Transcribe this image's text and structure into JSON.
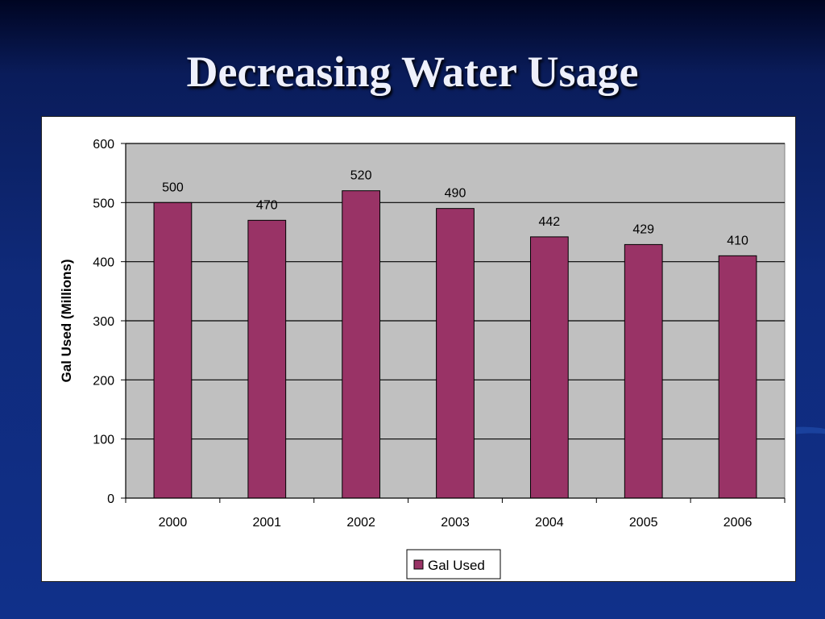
{
  "slide": {
    "title": "Decreasing Water Usage",
    "background_color": "#10308a"
  },
  "chart_data": {
    "type": "bar",
    "categories": [
      "2000",
      "2001",
      "2002",
      "2003",
      "2004",
      "2005",
      "2006"
    ],
    "series": [
      {
        "name": "Gal Used",
        "values": [
          500,
          470,
          520,
          490,
          442,
          429,
          410
        ],
        "color": "#993366"
      }
    ],
    "data_labels": [
      "500",
      "470",
      "520",
      "490",
      "442",
      "429",
      "410"
    ],
    "title": "",
    "xlabel": "",
    "ylabel": "Gal Used (Millions)",
    "ylim": [
      0,
      600
    ],
    "yticks": [
      "0",
      "100",
      "200",
      "300",
      "400",
      "500",
      "600"
    ],
    "grid": true,
    "plot_background": "#c0c0c0",
    "legend": {
      "entries": [
        "Gal Used"
      ],
      "position": "bottom"
    }
  }
}
